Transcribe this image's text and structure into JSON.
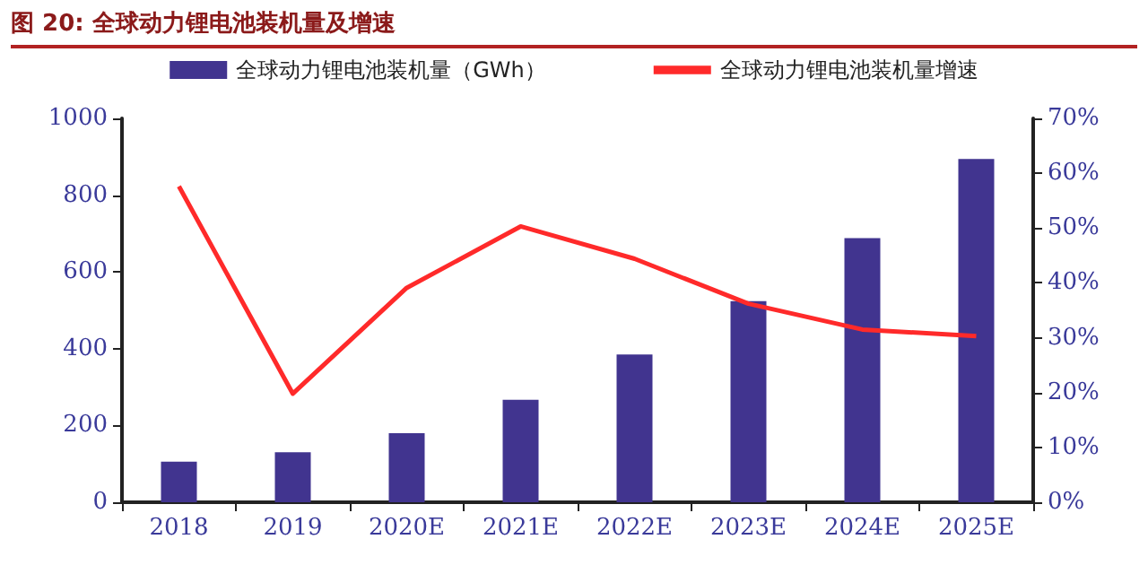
{
  "chart_data": {
    "type": "bar",
    "title": "图 20: 全球动力锂电池装机量及增速",
    "categories": [
      "2018",
      "2019",
      "2020E",
      "2021E",
      "2022E",
      "2023E",
      "2024E",
      "2025E"
    ],
    "series": [
      {
        "name": "全球动力锂电池装机量（GWh）",
        "type": "bar",
        "color": "#41348f",
        "values": [
          106,
          130,
          180,
          267,
          385,
          524,
          688,
          894
        ]
      },
      {
        "name": "全球动力锂电池装机量增速",
        "type": "line",
        "axis": "y2",
        "color": "#ff2a2a",
        "values": [
          57.6,
          19.8,
          39.1,
          50.3,
          44.4,
          36.2,
          31.5,
          30.3
        ]
      }
    ],
    "ylim": [
      0,
      1000
    ],
    "yticks": [
      0,
      200,
      400,
      600,
      800,
      1000
    ],
    "y2lim": [
      0,
      70
    ],
    "y2ticks": [
      {
        "value": 0,
        "label": "0%"
      },
      {
        "value": 10,
        "label": "10%"
      },
      {
        "value": 20,
        "label": "20%"
      },
      {
        "value": 30,
        "label": "30%"
      },
      {
        "value": 40,
        "label": "40%"
      },
      {
        "value": 50,
        "label": "50%"
      },
      {
        "value": 60,
        "label": "60%"
      },
      {
        "value": 70,
        "label": "70%"
      }
    ],
    "grid": false,
    "legend": "top",
    "marker": "none"
  }
}
